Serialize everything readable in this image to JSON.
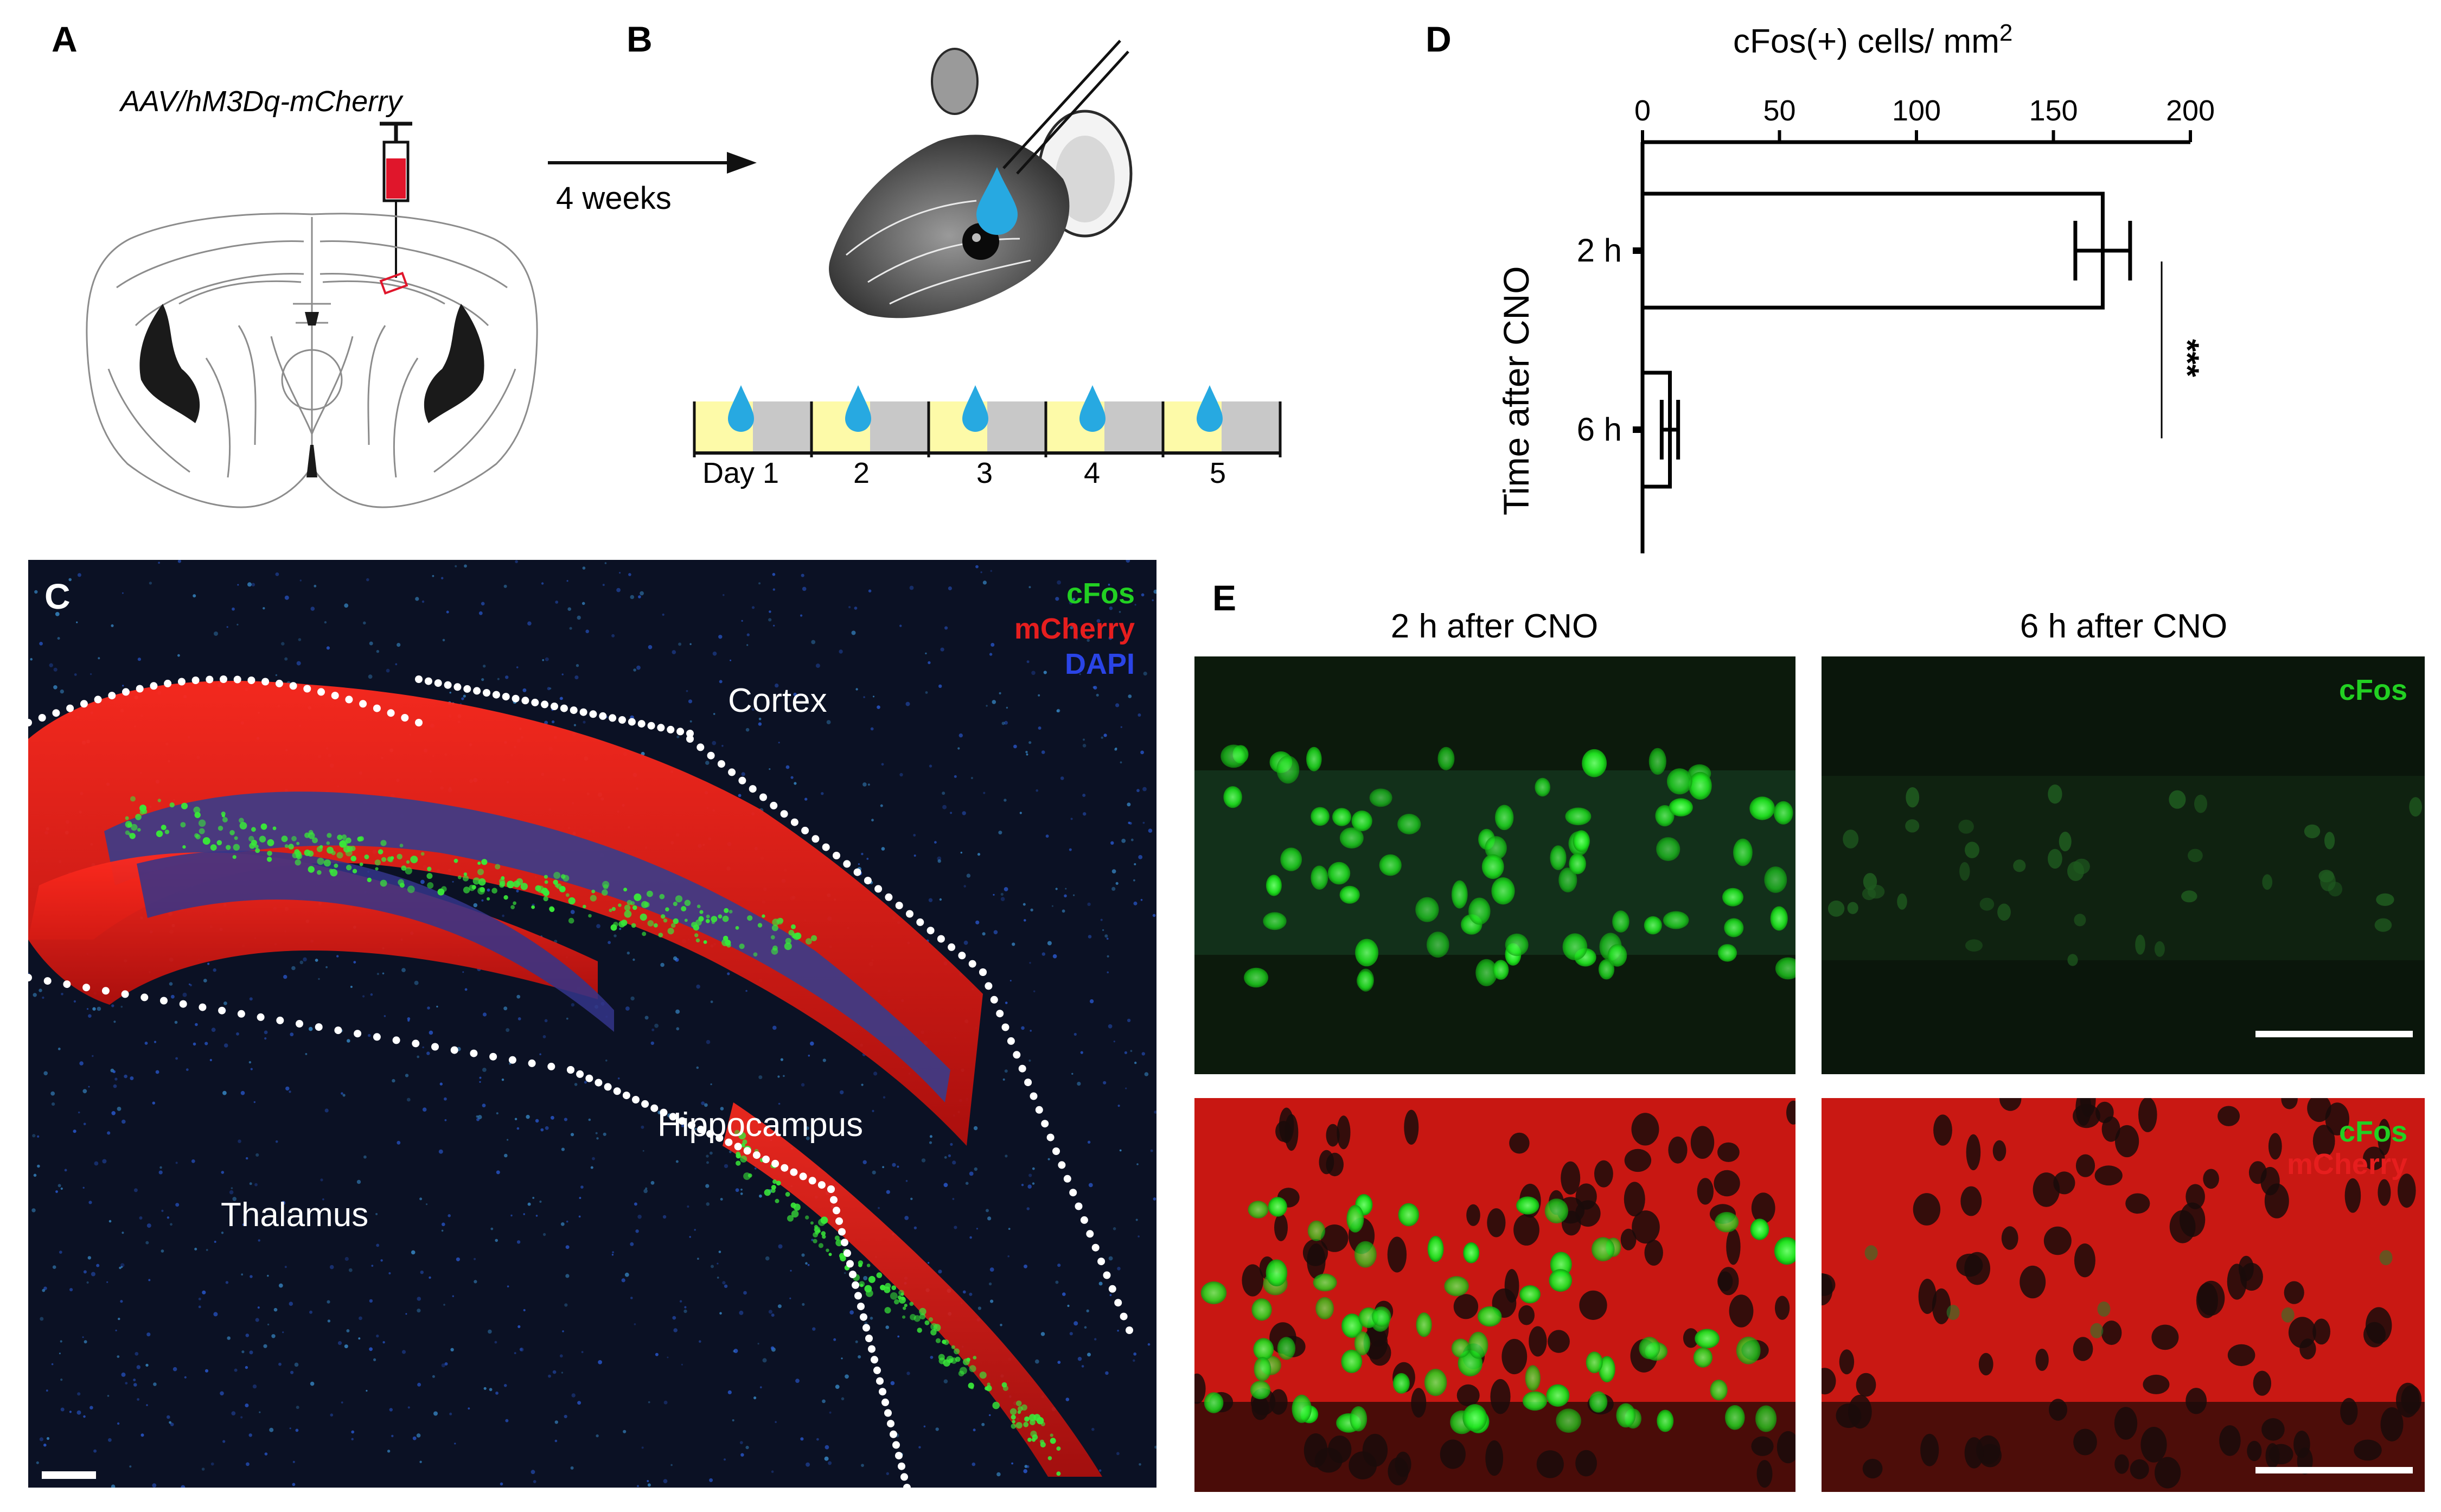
{
  "panels": {
    "a": {
      "letter": "A",
      "virus_label": "AAV/hM3Dq-mCherry",
      "colors": {
        "syringe_fill": "#e0162b",
        "injection_box": "#e0162b",
        "ventricle": "#1a1a1a"
      }
    },
    "b": {
      "letter": "B",
      "arrow_label": "4 weeks",
      "days": [
        "Day 1",
        "2",
        "3",
        "4",
        "5"
      ],
      "colors": {
        "light_phase": "#fdfaa8",
        "dark_phase": "#c8c8c8",
        "drop": "#27a9e1"
      },
      "icons": [
        "mouse-head-image",
        "water-drop-icon"
      ]
    },
    "c": {
      "letter": "C",
      "legend": [
        {
          "label": "cFos",
          "color": "#22d022"
        },
        {
          "label": "mCherry",
          "color": "#e61e1e"
        },
        {
          "label": "DAPI",
          "color": "#2a44e6"
        }
      ],
      "regions": {
        "cortex": "Cortex",
        "hippocampus": "Hippocampus",
        "thalamus": "Thalamus"
      }
    },
    "d": {
      "letter": "D",
      "significance": "***"
    },
    "e": {
      "letter": "E",
      "col_titles": [
        "2 h after CNO",
        "6 h after CNO"
      ],
      "top_legend": [
        {
          "label": "cFos",
          "color": "#22d022"
        }
      ],
      "bottom_legend": [
        {
          "label": "cFos",
          "color": "#22d022"
        },
        {
          "label": "mCherry",
          "color": "#e61e1e"
        }
      ]
    }
  },
  "chart_data": {
    "type": "bar",
    "orientation": "horizontal",
    "title": "cFos(+) cells/ mm",
    "title_superscript": "2",
    "xlim": [
      0,
      200
    ],
    "x_ticks": [
      0,
      50,
      100,
      150,
      200
    ],
    "x_axis_position": "top",
    "ylabel": "Time after CNO",
    "categories": [
      "2 h",
      "6 h"
    ],
    "values": [
      168,
      10
    ],
    "errors": [
      10,
      3
    ],
    "bar_color": "#ffffff",
    "edge_color": "#000000"
  }
}
